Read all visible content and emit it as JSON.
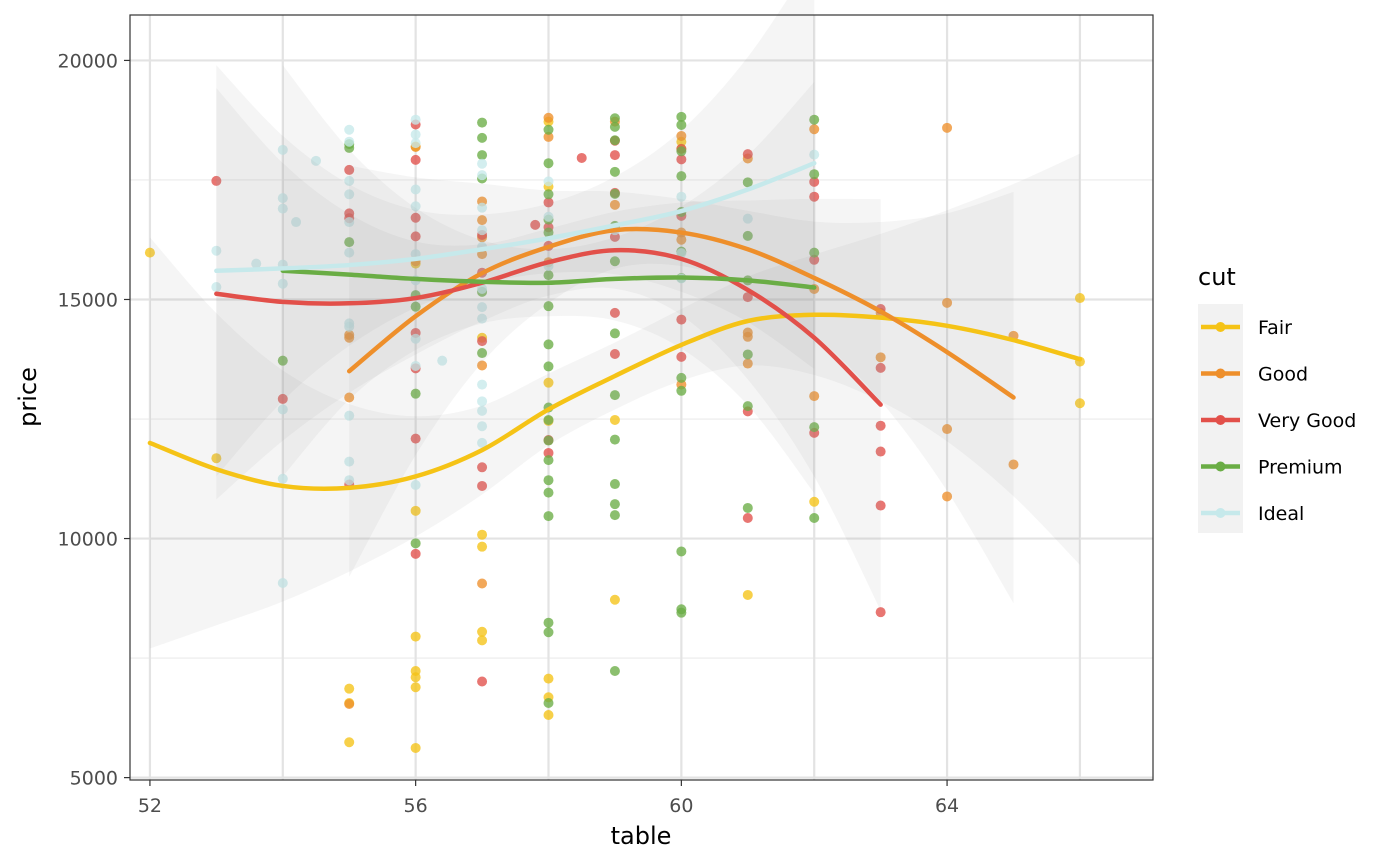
{
  "chart_data": {
    "type": "scatter",
    "title": "",
    "xlabel": "table",
    "ylabel": "price",
    "xlim": [
      51.7,
      67.1
    ],
    "ylim": [
      4950,
      20950
    ],
    "x_ticks": [
      52,
      56,
      60,
      64
    ],
    "x_tick_labels": [
      "52",
      "56",
      "60",
      "64"
    ],
    "y_ticks": [
      5000,
      10000,
      15000,
      20000
    ],
    "y_tick_labels": [
      "5000",
      "10000",
      "15000",
      "20000"
    ],
    "grid": true,
    "legend_title": "cut",
    "legend_position": "right",
    "series": [
      {
        "name": "Fair",
        "color": "#F5C316",
        "points": [
          [
            52,
            15980
          ],
          [
            53,
            11680
          ],
          [
            55,
            6860
          ],
          [
            55,
            6560
          ],
          [
            55,
            5740
          ],
          [
            56,
            18200
          ],
          [
            56,
            15750
          ],
          [
            56,
            10580
          ],
          [
            56,
            7950
          ],
          [
            56,
            7230
          ],
          [
            56,
            7100
          ],
          [
            56,
            6890
          ],
          [
            56,
            5620
          ],
          [
            57,
            10080
          ],
          [
            57,
            9830
          ],
          [
            57,
            8050
          ],
          [
            57,
            7870
          ],
          [
            57,
            14200
          ],
          [
            58,
            18720
          ],
          [
            58,
            17360
          ],
          [
            58,
            13260
          ],
          [
            58,
            12460
          ],
          [
            58,
            7070
          ],
          [
            58,
            6680
          ],
          [
            58,
            6310
          ],
          [
            59,
            12480
          ],
          [
            59,
            8720
          ],
          [
            60,
            18300
          ],
          [
            60,
            18150
          ],
          [
            61,
            8820
          ],
          [
            62,
            10770
          ],
          [
            66,
            15030
          ],
          [
            66,
            13700
          ],
          [
            66,
            12830
          ]
        ],
        "trend": [
          [
            52,
            12000
          ],
          [
            53,
            11450
          ],
          [
            54,
            11100
          ],
          [
            55,
            11060
          ],
          [
            56,
            11300
          ],
          [
            57,
            11850
          ],
          [
            58,
            12700
          ],
          [
            59,
            13400
          ],
          [
            60,
            14050
          ],
          [
            61,
            14550
          ],
          [
            62,
            14680
          ],
          [
            63,
            14620
          ],
          [
            64,
            14450
          ],
          [
            65,
            14150
          ],
          [
            66,
            13750
          ]
        ]
      },
      {
        "name": "Good",
        "color": "#EE8F2B",
        "points": [
          [
            55,
            14260
          ],
          [
            55,
            14200
          ],
          [
            55,
            12950
          ],
          [
            55,
            6540
          ],
          [
            56,
            18190
          ],
          [
            56,
            15800
          ],
          [
            57,
            17050
          ],
          [
            57,
            16660
          ],
          [
            57,
            16300
          ],
          [
            57,
            15950
          ],
          [
            57,
            13620
          ],
          [
            57,
            9060
          ],
          [
            58,
            18800
          ],
          [
            58,
            18400
          ],
          [
            58,
            15780
          ],
          [
            59,
            18720
          ],
          [
            59,
            16980
          ],
          [
            60,
            18420
          ],
          [
            60,
            16400
          ],
          [
            60,
            16250
          ],
          [
            60,
            13220
          ],
          [
            61,
            17950
          ],
          [
            61,
            14220
          ],
          [
            61,
            13660
          ],
          [
            61,
            14310
          ],
          [
            62,
            18560
          ],
          [
            62,
            15220
          ],
          [
            62,
            12980
          ],
          [
            63,
            14720
          ],
          [
            63,
            13790
          ],
          [
            64,
            18590
          ],
          [
            64,
            14930
          ],
          [
            64,
            12290
          ],
          [
            64,
            10880
          ],
          [
            65,
            14240
          ],
          [
            65,
            11550
          ]
        ],
        "trend": [
          [
            55,
            13500
          ],
          [
            56,
            14650
          ],
          [
            57,
            15550
          ],
          [
            58,
            16100
          ],
          [
            59,
            16450
          ],
          [
            60,
            16400
          ],
          [
            61,
            16050
          ],
          [
            62,
            15450
          ],
          [
            63,
            14750
          ],
          [
            64,
            13900
          ],
          [
            65,
            12950
          ]
        ]
      },
      {
        "name": "Very Good",
        "color": "#E2504A",
        "points": [
          [
            53,
            17480
          ],
          [
            54,
            12920
          ],
          [
            55,
            17710
          ],
          [
            55,
            16800
          ],
          [
            55,
            16700
          ],
          [
            55,
            11130
          ],
          [
            56,
            18660
          ],
          [
            56,
            17920
          ],
          [
            56,
            16710
          ],
          [
            56,
            16320
          ],
          [
            56,
            14300
          ],
          [
            56,
            13560
          ],
          [
            56,
            12090
          ],
          [
            56,
            9680
          ],
          [
            57,
            16350
          ],
          [
            57,
            15560
          ],
          [
            57,
            14130
          ],
          [
            57,
            11490
          ],
          [
            57,
            11100
          ],
          [
            57,
            7010
          ],
          [
            57.8,
            16560
          ],
          [
            58,
            17030
          ],
          [
            58,
            16510
          ],
          [
            58,
            16120
          ],
          [
            58,
            12060
          ],
          [
            58,
            11790
          ],
          [
            58.5,
            17960
          ],
          [
            59,
            18320
          ],
          [
            59,
            18020
          ],
          [
            59,
            17230
          ],
          [
            59,
            16310
          ],
          [
            59,
            14720
          ],
          [
            59,
            13860
          ],
          [
            60,
            18150
          ],
          [
            60,
            17930
          ],
          [
            60,
            16750
          ],
          [
            60,
            14580
          ],
          [
            60,
            13800
          ],
          [
            61,
            18040
          ],
          [
            61,
            15050
          ],
          [
            61,
            12660
          ],
          [
            61,
            10430
          ],
          [
            62,
            17460
          ],
          [
            62,
            17150
          ],
          [
            62,
            15830
          ],
          [
            62,
            12210
          ],
          [
            63,
            14800
          ],
          [
            63,
            13570
          ],
          [
            63,
            12360
          ],
          [
            63,
            11820
          ],
          [
            63,
            10690
          ],
          [
            63,
            8460
          ]
        ],
        "trend": [
          [
            53,
            15120
          ],
          [
            54,
            14950
          ],
          [
            55,
            14920
          ],
          [
            56,
            15030
          ],
          [
            57,
            15350
          ],
          [
            58,
            15780
          ],
          [
            59,
            16030
          ],
          [
            60,
            15850
          ],
          [
            61,
            15200
          ],
          [
            62,
            14200
          ],
          [
            63,
            12800
          ]
        ]
      },
      {
        "name": "Premium",
        "color": "#6AAD45",
        "points": [
          [
            54,
            13720
          ],
          [
            55,
            18250
          ],
          [
            55,
            18170
          ],
          [
            55,
            16200
          ],
          [
            56,
            15090
          ],
          [
            56,
            14850
          ],
          [
            56,
            13030
          ],
          [
            56,
            9900
          ],
          [
            57,
            18700
          ],
          [
            57,
            18380
          ],
          [
            57,
            18020
          ],
          [
            57,
            17530
          ],
          [
            57,
            15160
          ],
          [
            57,
            13880
          ],
          [
            58,
            18550
          ],
          [
            58,
            17850
          ],
          [
            58,
            17200
          ],
          [
            58,
            16670
          ],
          [
            58,
            16400
          ],
          [
            58,
            15510
          ],
          [
            58,
            14860
          ],
          [
            58,
            14060
          ],
          [
            58,
            13600
          ],
          [
            58,
            12740
          ],
          [
            58,
            12480
          ],
          [
            58,
            12050
          ],
          [
            58,
            11640
          ],
          [
            58,
            11220
          ],
          [
            58,
            10960
          ],
          [
            58,
            10470
          ],
          [
            58,
            8240
          ],
          [
            58,
            8040
          ],
          [
            58,
            6560
          ],
          [
            59,
            18790
          ],
          [
            59,
            18610
          ],
          [
            59,
            18330
          ],
          [
            59,
            17670
          ],
          [
            59,
            17210
          ],
          [
            59,
            16540
          ],
          [
            59,
            15800
          ],
          [
            59,
            14290
          ],
          [
            59,
            13000
          ],
          [
            59,
            12070
          ],
          [
            59,
            11140
          ],
          [
            59,
            10720
          ],
          [
            59,
            10490
          ],
          [
            59,
            7230
          ],
          [
            60,
            18820
          ],
          [
            60,
            18650
          ],
          [
            60,
            18100
          ],
          [
            60,
            17580
          ],
          [
            60,
            16830
          ],
          [
            60,
            16000
          ],
          [
            60,
            15450
          ],
          [
            60,
            13360
          ],
          [
            60,
            13090
          ],
          [
            60,
            9730
          ],
          [
            60,
            8520
          ],
          [
            60,
            8450
          ],
          [
            61,
            17450
          ],
          [
            61,
            16330
          ],
          [
            61,
            15400
          ],
          [
            61,
            13850
          ],
          [
            61,
            12770
          ],
          [
            61,
            10640
          ],
          [
            62,
            18760
          ],
          [
            62,
            17620
          ],
          [
            62,
            15980
          ],
          [
            62,
            12330
          ],
          [
            62,
            10430
          ]
        ],
        "trend": [
          [
            54,
            15600
          ],
          [
            55,
            15520
          ],
          [
            56,
            15430
          ],
          [
            57,
            15370
          ],
          [
            58,
            15350
          ],
          [
            59,
            15430
          ],
          [
            60,
            15460
          ],
          [
            61,
            15400
          ],
          [
            62,
            15250
          ]
        ]
      },
      {
        "name": "Ideal",
        "color": "#C6E9EB",
        "points": [
          [
            53,
            16020
          ],
          [
            53,
            15260
          ],
          [
            53.6,
            15750
          ],
          [
            54,
            18130
          ],
          [
            54,
            17120
          ],
          [
            54,
            16900
          ],
          [
            54,
            15730
          ],
          [
            54,
            15330
          ],
          [
            54,
            12700
          ],
          [
            54,
            11250
          ],
          [
            54,
            9070
          ],
          [
            54.2,
            16620
          ],
          [
            54.5,
            17900
          ],
          [
            55,
            18550
          ],
          [
            55,
            18300
          ],
          [
            55,
            17480
          ],
          [
            55,
            17200
          ],
          [
            55,
            16620
          ],
          [
            55,
            15980
          ],
          [
            55,
            14500
          ],
          [
            55,
            14430
          ],
          [
            55,
            12570
          ],
          [
            55,
            11610
          ],
          [
            55,
            11220
          ],
          [
            56,
            18760
          ],
          [
            56,
            18450
          ],
          [
            56,
            18270
          ],
          [
            56,
            17300
          ],
          [
            56,
            16950
          ],
          [
            56,
            15950
          ],
          [
            56,
            15400
          ],
          [
            56,
            14180
          ],
          [
            56,
            13610
          ],
          [
            56,
            11120
          ],
          [
            56.4,
            13720
          ],
          [
            57,
            17840
          ],
          [
            57,
            17600
          ],
          [
            57,
            16920
          ],
          [
            57,
            16450
          ],
          [
            57,
            16100
          ],
          [
            57,
            15220
          ],
          [
            57,
            14840
          ],
          [
            57,
            14600
          ],
          [
            57,
            13220
          ],
          [
            57,
            12870
          ],
          [
            57,
            12670
          ],
          [
            57,
            12350
          ],
          [
            57,
            12000
          ],
          [
            58,
            17470
          ],
          [
            58,
            16730
          ],
          [
            58,
            15700
          ],
          [
            59,
            16450
          ],
          [
            60,
            17150
          ],
          [
            60,
            15970
          ],
          [
            60,
            15440
          ],
          [
            61,
            16690
          ],
          [
            62,
            18030
          ]
        ],
        "trend": [
          [
            53,
            15600
          ],
          [
            54,
            15650
          ],
          [
            55,
            15720
          ],
          [
            56,
            15850
          ],
          [
            57,
            16050
          ],
          [
            58,
            16280
          ],
          [
            59,
            16550
          ],
          [
            60,
            16850
          ],
          [
            61,
            17300
          ],
          [
            62,
            17850
          ]
        ]
      }
    ]
  }
}
